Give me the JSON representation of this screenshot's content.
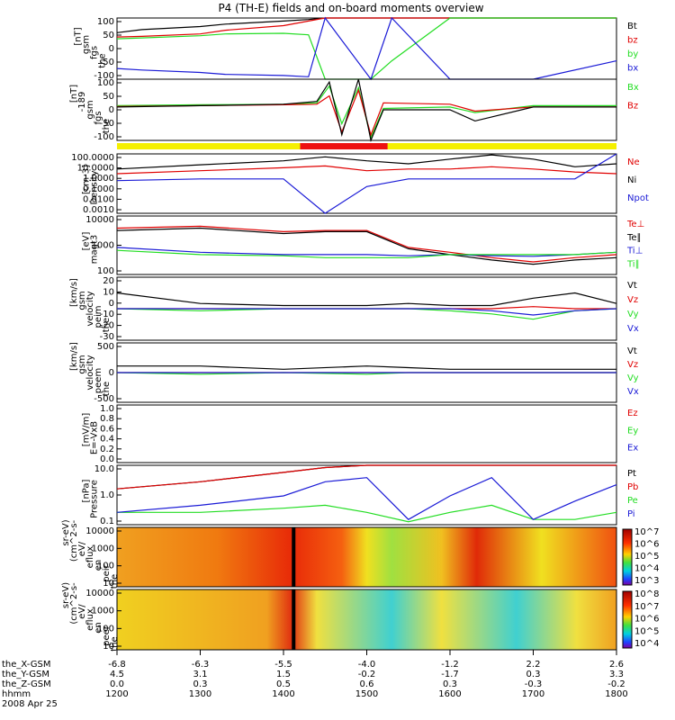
{
  "title": "P4 (TH-E) fields and on-board moments overview",
  "colors": {
    "black": "#000000",
    "red": "#e00000",
    "green": "#22dd22",
    "blue": "#1a1ad6",
    "yellow": "#f5f000",
    "bar_red": "#ee1111"
  },
  "x_axis": {
    "rows": [
      {
        "label": "the_X-GSM",
        "values": [
          "-6.8",
          "-6.3",
          "-5.5",
          "-4.0",
          "-1.2",
          "2.2",
          "2.6"
        ]
      },
      {
        "label": "the_Y-GSM",
        "values": [
          "4.5",
          "3.1",
          "1.5",
          "-0.2",
          "-1.7",
          "0.3",
          "3.3"
        ]
      },
      {
        "label": "the_Z-GSM",
        "values": [
          "0.0",
          "0.3",
          "0.5",
          "0.6",
          "0.3",
          "-0.3",
          "-0.2"
        ]
      },
      {
        "label": "hhmm",
        "values": [
          "1200",
          "1300",
          "1400",
          "1500",
          "1600",
          "1700",
          "1800"
        ]
      }
    ],
    "date": "2008 Apr 25"
  },
  "chart_data": [
    {
      "type": "line",
      "ylabel": "the fgs gsm [nT]",
      "ylim": [
        -100,
        100
      ],
      "ticks": [
        "100",
        "50",
        "0",
        "-50",
        "-100"
      ],
      "x": [
        1200,
        1230,
        1300,
        1330,
        1400,
        1430,
        1450,
        1505,
        1530,
        1600,
        1700,
        1800
      ],
      "series": [
        {
          "name": "Bt",
          "color": "#000000",
          "values": [
            52,
            62,
            72,
            80,
            90,
            95,
            100,
            100,
            100,
            100,
            100,
            100
          ]
        },
        {
          "name": "bz",
          "color": "#e00000",
          "values": [
            38,
            40,
            48,
            60,
            75,
            90,
            100,
            100,
            100,
            100,
            100,
            100
          ]
        },
        {
          "name": "by",
          "color": "#22dd22",
          "values": [
            32,
            35,
            42,
            48,
            50,
            45,
            -100,
            -100,
            -40,
            100,
            100,
            100
          ]
        },
        {
          "name": "bx",
          "color": "#1a1ad6",
          "values": [
            -65,
            -70,
            -78,
            -84,
            -88,
            -92,
            100,
            -100,
            100,
            -100,
            -100,
            -40
          ]
        }
      ]
    },
    {
      "type": "line",
      "ylabel": "the fgs gsm -189 [nT]",
      "ylim": [
        -120,
        100
      ],
      "ticks": [
        "100",
        "50",
        "0",
        "-50",
        "-100"
      ],
      "x": [
        1200,
        1300,
        1400,
        1440,
        1455,
        1470,
        1490,
        1505,
        1520,
        1600,
        1630,
        1700,
        1800
      ],
      "series": [
        {
          "name": "Bx",
          "color": "#22dd22",
          "values": [
            5,
            8,
            10,
            15,
            75,
            -60,
            70,
            -110,
            -5,
            0,
            -20,
            5,
            5
          ]
        },
        {
          "name": "Bz",
          "color": "#e00000",
          "values": [
            2,
            5,
            8,
            10,
            40,
            -90,
            60,
            -100,
            15,
            10,
            -15,
            0,
            0
          ]
        },
        {
          "name": "",
          "color": "#000000",
          "values": [
            0,
            5,
            10,
            20,
            90,
            -100,
            100,
            -120,
            -10,
            -10,
            -50,
            0,
            0
          ]
        }
      ]
    },
    {
      "type": "line",
      "ylabel": "Density [cm-3]",
      "ylim": [
        0.0001,
        100
      ],
      "ticks": [
        "100.0000",
        "10.0000",
        "1.0000",
        "0.1000",
        "0.0100",
        "0.0010"
      ],
      "x": [
        1200,
        1300,
        1400,
        1450,
        1500,
        1550,
        1600,
        1650,
        1700,
        1750,
        1800
      ],
      "series": [
        {
          "name": "Ne",
          "color": "#e00000",
          "values": [
            1,
            2,
            4,
            6,
            2,
            3,
            3,
            5,
            3,
            1.5,
            1
          ]
        },
        {
          "name": "Ni",
          "color": "#000000",
          "values": [
            3,
            8,
            20,
            50,
            20,
            10,
            30,
            80,
            30,
            5,
            10
          ]
        },
        {
          "name": "Npot",
          "color": "#1a1ad6",
          "values": [
            0.2,
            0.3,
            0.3,
            0.0001,
            0.05,
            0.3,
            0.3,
            0.3,
            0.3,
            0.3,
            100
          ]
        }
      ]
    },
    {
      "type": "line",
      "ylabel": "magt3 [eV]",
      "ylim": [
        30,
        8000
      ],
      "ticks": [
        "10000",
        "1000",
        "100"
      ],
      "x": [
        1200,
        1300,
        1400,
        1450,
        1500,
        1550,
        1600,
        1650,
        1700,
        1750,
        1800
      ],
      "series": [
        {
          "name": "Te⊥",
          "color": "#e00000",
          "values": [
            2500,
            3000,
            1800,
            2000,
            2000,
            400,
            250,
            150,
            100,
            150,
            200
          ]
        },
        {
          "name": "Te∥",
          "color": "#000000",
          "values": [
            2000,
            2500,
            1500,
            1800,
            1800,
            350,
            200,
            120,
            80,
            120,
            150
          ]
        },
        {
          "name": "Ti⊥",
          "color": "#1a1ad6",
          "values": [
            400,
            250,
            200,
            200,
            200,
            180,
            200,
            180,
            170,
            200,
            250
          ]
        },
        {
          "name": "Ti∥",
          "color": "#22dd22",
          "values": [
            300,
            200,
            180,
            150,
            150,
            150,
            200,
            200,
            200,
            200,
            250
          ]
        }
      ]
    },
    {
      "type": "line",
      "ylabel": "the peim velocity gsm [km/s]",
      "ylim": [
        -30,
        30
      ],
      "ticks": [
        "20",
        "10",
        "0",
        "-10",
        "-20",
        "-30"
      ],
      "x": [
        1200,
        1300,
        1400,
        1500,
        1550,
        1600,
        1650,
        1700,
        1750,
        1800
      ],
      "series": [
        {
          "name": "Vt",
          "color": "#000000",
          "values": [
            15,
            5,
            3,
            3,
            5,
            3,
            3,
            10,
            15,
            5
          ]
        },
        {
          "name": "Vz",
          "color": "#e00000",
          "values": [
            0,
            0,
            0,
            0,
            0,
            0,
            0,
            2,
            0,
            0
          ]
        },
        {
          "name": "Vy",
          "color": "#22dd22",
          "values": [
            0,
            -2,
            0,
            0,
            0,
            -2,
            -5,
            -10,
            -2,
            0
          ]
        },
        {
          "name": "Vx",
          "color": "#1a1ad6",
          "values": [
            0,
            0,
            0,
            0,
            0,
            0,
            -2,
            -6,
            -2,
            0
          ]
        }
      ]
    },
    {
      "type": "line",
      "ylabel": "the peem velocity gsm [km/s]",
      "ylim": [
        -900,
        900
      ],
      "ticks": [
        "500",
        "0",
        "-500"
      ],
      "x": [
        1200,
        1300,
        1400,
        1500,
        1550,
        1600,
        1700,
        1800
      ],
      "series": [
        {
          "name": "Vt",
          "color": "#000000",
          "values": [
            200,
            200,
            100,
            200,
            150,
            100,
            100,
            100
          ]
        },
        {
          "name": "Vz",
          "color": "#e00000",
          "values": [
            0,
            0,
            0,
            0,
            0,
            0,
            0,
            0
          ]
        },
        {
          "name": "Vy",
          "color": "#22dd22",
          "values": [
            0,
            -50,
            0,
            -50,
            0,
            0,
            0,
            0
          ]
        },
        {
          "name": "Vx",
          "color": "#1a1ad6",
          "values": [
            0,
            0,
            0,
            0,
            0,
            0,
            0,
            0
          ]
        }
      ]
    },
    {
      "type": "line",
      "ylabel": "E=-VxB [mV/m]",
      "ylim": [
        0,
        1
      ],
      "ticks": [
        "1.0",
        "0.8",
        "0.6",
        "0.4",
        "0.2",
        "0.0"
      ],
      "x": [],
      "series": [
        {
          "name": "Ez",
          "color": "#e00000",
          "values": []
        },
        {
          "name": "Ey",
          "color": "#22dd22",
          "values": []
        },
        {
          "name": "Ex",
          "color": "#1a1ad6",
          "values": []
        }
      ]
    },
    {
      "type": "line",
      "ylabel": "Pressure [nPa]",
      "ylim": [
        0.03,
        10
      ],
      "ticks": [
        "10.0",
        "1.0",
        "0.1"
      ],
      "x": [
        1200,
        1300,
        1400,
        1450,
        1500,
        1550,
        1600,
        1650,
        1700,
        1750,
        1800
      ],
      "series": [
        {
          "name": "Pt",
          "color": "#000000",
          "values": [
            1,
            2,
            5,
            8,
            10,
            10,
            10,
            10,
            10,
            10,
            10
          ]
        },
        {
          "name": "Pb",
          "color": "#e00000",
          "values": [
            1,
            2,
            5,
            8,
            10,
            10,
            10,
            10,
            10,
            10,
            10
          ]
        },
        {
          "name": "Pe",
          "color": "#22dd22",
          "values": [
            0.1,
            0.1,
            0.15,
            0.2,
            0.1,
            0.04,
            0.1,
            0.2,
            0.05,
            0.05,
            0.1
          ]
        },
        {
          "name": "Pi",
          "color": "#1a1ad6",
          "values": [
            0.1,
            0.2,
            0.5,
            2,
            3,
            0.05,
            0.5,
            3,
            0.05,
            0.3,
            1.5
          ]
        }
      ]
    },
    {
      "type": "heatmap",
      "ylabel": "the peir en eflux eV/(cm^2-s-sr-eV)",
      "yticks": [
        "10000",
        "1000",
        "100",
        "10"
      ],
      "colorbar": [
        "10^7",
        "10^6",
        "10^5",
        "10^4",
        "10^3"
      ]
    },
    {
      "type": "heatmap",
      "ylabel": "the peer en eflux eV/(cm^2-s-sr-eV)",
      "yticks": [
        "10000",
        "1000",
        "100",
        "10"
      ],
      "colorbar": [
        "10^8",
        "10^7",
        "10^6",
        "10^5",
        "10^4"
      ]
    }
  ],
  "ylabels": [
    [
      "the",
      "fgs",
      "gsm",
      "[nT]"
    ],
    [
      "the",
      "fgs",
      "gsm",
      "-189",
      "[nT]"
    ],
    [
      "Density",
      "[cm-3]"
    ],
    [
      "magt3",
      "[eV]"
    ],
    [
      "the",
      "peim",
      "velocity",
      "gsm",
      "[km/s]"
    ],
    [
      "the",
      "peem",
      "velocity",
      "gsm",
      "[km/s]"
    ],
    [
      "E=-VxB",
      "[mV/m]"
    ],
    [
      "Pressure",
      "[nPa]"
    ],
    [
      "the",
      "peir",
      "en",
      "eflux",
      "eV/",
      "(cm^2-s-",
      "sr-eV)"
    ],
    [
      "the",
      "peer",
      "en",
      "eflux",
      "eV/",
      "(cm^2-s-",
      "sr-eV)"
    ]
  ]
}
